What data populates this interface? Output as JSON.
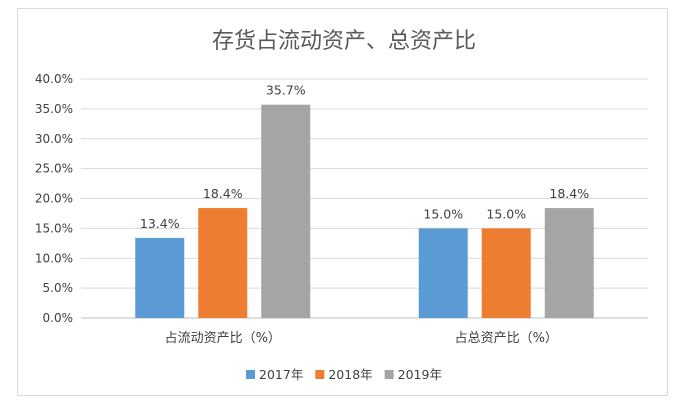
{
  "chart_data": {
    "type": "bar",
    "title": "存货占流动资产、总资产比",
    "categories": [
      "占流动资产比（%）",
      "占总资产比（%）"
    ],
    "series": [
      {
        "name": "2017年",
        "color": "#5b9bd5",
        "values": [
          13.4,
          15.0
        ]
      },
      {
        "name": "2018年",
        "color": "#ed7d31",
        "values": [
          18.4,
          15.0
        ]
      },
      {
        "name": "2019年",
        "color": "#a5a5a5",
        "values": [
          35.7,
          18.4
        ]
      }
    ],
    "data_labels": [
      [
        "13.4%",
        "18.4%",
        "35.7%"
      ],
      [
        "15.0%",
        "15.0%",
        "18.4%"
      ]
    ],
    "ylim": [
      0,
      40
    ],
    "yticks": [
      "0.0%",
      "5.0%",
      "10.0%",
      "15.0%",
      "20.0%",
      "25.0%",
      "30.0%",
      "35.0%",
      "40.0%"
    ],
    "ytick_values": [
      0,
      5,
      10,
      15,
      20,
      25,
      30,
      35,
      40
    ],
    "grid": true,
    "legend_position": "bottom"
  }
}
